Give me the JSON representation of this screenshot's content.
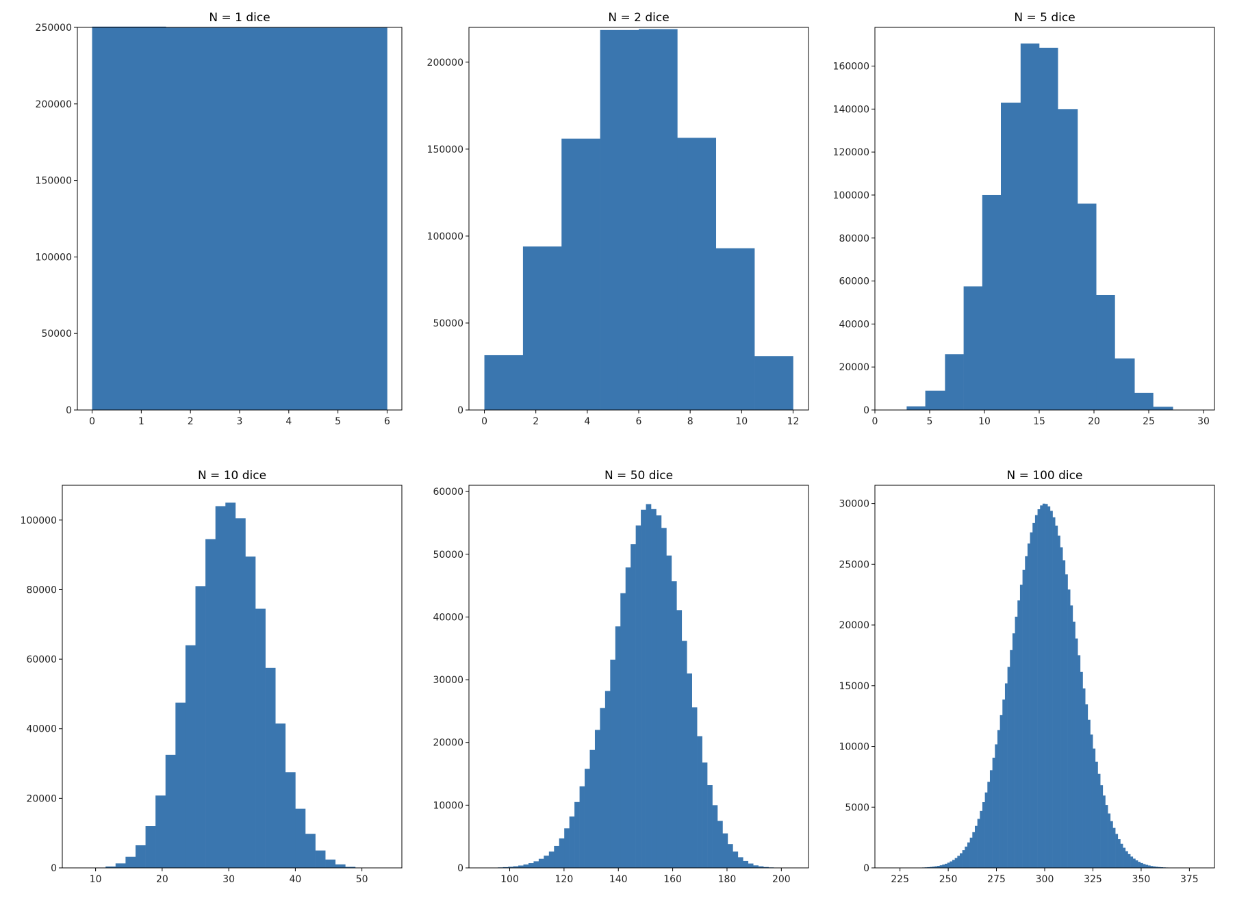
{
  "colors": {
    "bar": "#3a76af",
    "frame": "#000000",
    "background": "#ffffff"
  },
  "chart_data": [
    {
      "type": "bar",
      "title": "N = 1 dice",
      "xlabel": "",
      "ylabel": "",
      "xlim": [
        -0.3,
        6.3
      ],
      "ylim": [
        0,
        250000
      ],
      "xticks": [
        0,
        1,
        2,
        3,
        4,
        5,
        6
      ],
      "yticks": [
        0,
        50000,
        100000,
        150000,
        200000,
        250000
      ],
      "bins": [
        [
          0,
          1.5,
          250500
        ],
        [
          1.5,
          3,
          250000
        ],
        [
          3,
          4.5,
          249800
        ],
        [
          4.5,
          6,
          249900
        ]
      ]
    },
    {
      "type": "bar",
      "title": "N = 2 dice",
      "xlabel": "",
      "ylabel": "",
      "xlim": [
        -0.6,
        12.6
      ],
      "ylim": [
        0,
        220000
      ],
      "xticks": [
        0,
        2,
        4,
        6,
        8,
        10,
        12
      ],
      "yticks": [
        0,
        50000,
        100000,
        150000,
        200000
      ],
      "bins": [
        [
          0,
          1.5,
          31500
        ],
        [
          1.5,
          3,
          94000
        ],
        [
          3,
          4.5,
          156000
        ],
        [
          4.5,
          6,
          218500
        ],
        [
          6,
          7.5,
          219000
        ],
        [
          7.5,
          9,
          156500
        ],
        [
          9,
          10.5,
          93000
        ],
        [
          10.5,
          12,
          31000
        ]
      ]
    },
    {
      "type": "bar",
      "title": "N = 5 dice",
      "xlabel": "",
      "ylabel": "",
      "xlim": [
        0,
        31
      ],
      "ylim": [
        0,
        178000
      ],
      "xticks": [
        0,
        5,
        10,
        15,
        20,
        25,
        30
      ],
      "yticks": [
        0,
        20000,
        40000,
        60000,
        80000,
        100000,
        120000,
        140000,
        160000
      ],
      "bins": [
        [
          2.9,
          4.6,
          1700
        ],
        [
          4.6,
          6.4,
          9000
        ],
        [
          6.4,
          8.1,
          26000
        ],
        [
          8.1,
          9.8,
          57500
        ],
        [
          9.8,
          11.5,
          100000
        ],
        [
          11.5,
          13.3,
          143000
        ],
        [
          13.3,
          15.0,
          170500
        ],
        [
          15.0,
          16.7,
          168500
        ],
        [
          16.7,
          18.5,
          140000
        ],
        [
          18.5,
          20.2,
          96000
        ],
        [
          20.2,
          21.9,
          53500
        ],
        [
          21.9,
          23.7,
          24000
        ],
        [
          23.7,
          25.4,
          8000
        ],
        [
          25.4,
          27.2,
          1500
        ]
      ]
    },
    {
      "type": "bar",
      "title": "N = 10 dice",
      "xlabel": "",
      "ylabel": "",
      "xlim": [
        5,
        56
      ],
      "ylim": [
        0,
        110000
      ],
      "xticks": [
        10,
        20,
        30,
        40,
        50
      ],
      "yticks": [
        0,
        20000,
        40000,
        60000,
        80000,
        100000
      ],
      "bins": [
        [
          10.0,
          11.5,
          100
        ],
        [
          11.5,
          13.0,
          400
        ],
        [
          13.0,
          14.5,
          1300
        ],
        [
          14.5,
          16.0,
          3200
        ],
        [
          16.0,
          17.5,
          6500
        ],
        [
          17.5,
          19.0,
          12000
        ],
        [
          19.0,
          20.5,
          20800
        ],
        [
          20.5,
          22.0,
          32500
        ],
        [
          22.0,
          23.5,
          47500
        ],
        [
          23.5,
          25.0,
          64000
        ],
        [
          25.0,
          26.5,
          81000
        ],
        [
          26.5,
          28.0,
          94500
        ],
        [
          28.0,
          29.5,
          104000
        ],
        [
          29.5,
          31.0,
          105000
        ],
        [
          31.0,
          32.5,
          100500
        ],
        [
          32.5,
          34.0,
          89500
        ],
        [
          34.0,
          35.5,
          74500
        ],
        [
          35.5,
          37.0,
          57500
        ],
        [
          37.0,
          38.5,
          41500
        ],
        [
          38.5,
          40.0,
          27500
        ],
        [
          40.0,
          41.5,
          17000
        ],
        [
          41.5,
          43.0,
          9800
        ],
        [
          43.0,
          44.5,
          5000
        ],
        [
          44.5,
          46.0,
          2400
        ],
        [
          46.0,
          47.5,
          1000
        ],
        [
          47.5,
          49.0,
          300
        ],
        [
          49.0,
          50.5,
          100
        ]
      ]
    },
    {
      "type": "bar",
      "title": "N = 50 dice",
      "xlabel": "",
      "ylabel": "",
      "xlim": [
        85,
        210
      ],
      "ylim": [
        0,
        61000
      ],
      "xticks": [
        100,
        120,
        140,
        160,
        180,
        200
      ],
      "yticks": [
        0,
        10000,
        20000,
        30000,
        40000,
        50000,
        60000
      ],
      "bin_start": 90,
      "bin_width": 1.88,
      "counts": [
        20,
        30,
        50,
        80,
        120,
        180,
        260,
        380,
        540,
        760,
        1050,
        1450,
        1950,
        2600,
        3500,
        4700,
        6300,
        8200,
        10500,
        13000,
        15800,
        18800,
        22000,
        25500,
        28200,
        33200,
        38500,
        43800,
        47900,
        51600,
        54600,
        57100,
        58000,
        57200,
        56200,
        54200,
        49800,
        45700,
        41100,
        36200,
        31000,
        25600,
        21000,
        16800,
        13200,
        10000,
        7500,
        5500,
        3800,
        2600,
        1700,
        1100,
        700,
        400,
        250,
        140,
        80,
        40,
        20
      ]
    },
    {
      "type": "bar",
      "title": "N = 100 dice",
      "xlabel": "",
      "ylabel": "",
      "xlim": [
        212,
        388
      ],
      "ylim": [
        0,
        31500
      ],
      "xticks": [
        225,
        250,
        275,
        300,
        325,
        350,
        375
      ],
      "yticks": [
        0,
        5000,
        10000,
        15000,
        20000,
        25000,
        30000
      ],
      "mean": 300,
      "std": 17.1,
      "peak": 30000,
      "range": [
        230,
        370
      ],
      "bin_width": 1.3
    }
  ]
}
